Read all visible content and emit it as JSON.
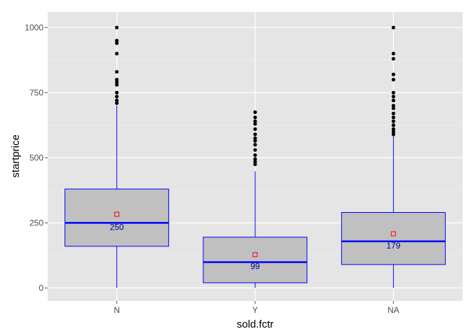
{
  "chart_data": {
    "type": "boxplot",
    "xlabel": "sold.fctr",
    "ylabel": "startprice",
    "ylim": [
      -50,
      1060
    ],
    "yticks": [
      0,
      250,
      500,
      750,
      1000
    ],
    "ytick_labels": [
      "0",
      "250",
      "500",
      "750",
      "1000"
    ],
    "categories": [
      "N",
      "Y",
      "NA"
    ],
    "grid": true,
    "colors": {
      "panel_bg": "#e5e5e5",
      "grid_major": "#ffffff",
      "grid_minor": "#f2f2f2",
      "box_fill": "#c0c0c0",
      "box_stroke": "#0000ff",
      "median_line": "#0000ff",
      "mean_marker": "#ff0000",
      "outlier": "#000000",
      "median_label": "#00008b"
    },
    "boxes": [
      {
        "category": "N",
        "whisker_low": 0,
        "q1": 160,
        "median": 250,
        "q3": 380,
        "whisker_high": 700,
        "mean": 283,
        "median_label": "250",
        "outliers": [
          710,
          720,
          735,
          750,
          780,
          790,
          800,
          830,
          900,
          940,
          950,
          1000
        ]
      },
      {
        "category": "Y",
        "whisker_low": 0,
        "q1": 20,
        "median": 99,
        "q3": 195,
        "whisker_high": 448,
        "mean": 128,
        "median_label": "99",
        "outliers": [
          475,
          485,
          495,
          510,
          530,
          550,
          565,
          575,
          590,
          610,
          630,
          640,
          655,
          675
        ]
      },
      {
        "category": "NA",
        "whisker_low": 0,
        "q1": 90,
        "median": 179,
        "q3": 290,
        "whisker_high": 585,
        "mean": 208,
        "median_label": "179",
        "outliers": [
          590,
          600,
          610,
          625,
          640,
          655,
          670,
          690,
          700,
          720,
          735,
          750,
          800,
          820,
          880,
          900,
          1000
        ]
      }
    ]
  }
}
